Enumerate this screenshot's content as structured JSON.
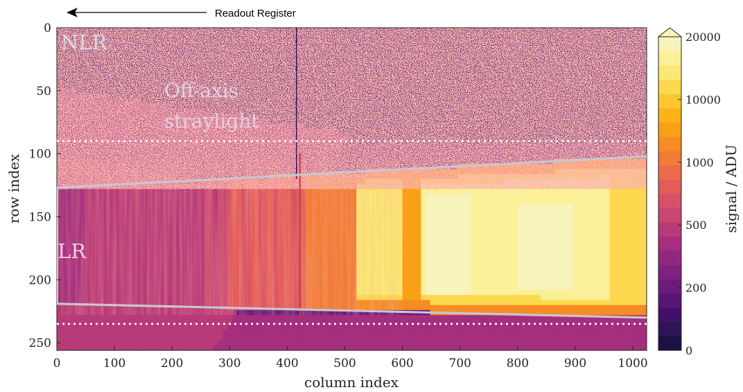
{
  "chart_data": {
    "type": "heatmap",
    "title": "",
    "xlabel": "column index",
    "ylabel": "row index",
    "xlim": [
      0,
      1024
    ],
    "ylim": [
      0,
      256
    ],
    "y_axis_inverted": true,
    "x_ticks": [
      0,
      100,
      200,
      300,
      400,
      500,
      600,
      700,
      800,
      900,
      1000
    ],
    "y_ticks": [
      0,
      50,
      100,
      150,
      200,
      250
    ],
    "colorbar": {
      "label": "signal / ADU",
      "scale": "log",
      "colormap": "plasma-like (dark purple to pale yellow), discrete levels",
      "tick_labels": [
        "0",
        "200",
        "500",
        "1000",
        "10000",
        "20000"
      ],
      "extends_above_max": true,
      "colors": [
        "#1c1046",
        "#2d1457",
        "#42106a",
        "#571677",
        "#6a1b7c",
        "#7e217f",
        "#912880",
        "#a52f7e",
        "#b83a78",
        "#c84670",
        "#d75166",
        "#e35c58",
        "#ec6a49",
        "#f27b36",
        "#f68c24",
        "#f9a016",
        "#fbb318",
        "#fcc72e",
        "#fcd94f",
        "#fbe771",
        "#faf098",
        "#f8f3bb"
      ]
    },
    "annotations": {
      "readout": "Readout Register",
      "nlr": "NLR",
      "off_axis_line1": "Off-axis",
      "off_axis_line2": "straylight",
      "lr": "LR"
    },
    "boundary_lines": [
      {
        "name": "LR upper boundary",
        "x": [
          0,
          1024
        ],
        "y": [
          127,
          102
        ]
      },
      {
        "name": "LR lower boundary",
        "x": [
          0,
          1024
        ],
        "y": [
          219,
          230
        ]
      }
    ],
    "dotted_lines_rows": [
      90,
      235
    ],
    "regions": [
      {
        "name": "NLR background",
        "rows": [
          0,
          90
        ],
        "typical_signal_ADU": 180
      },
      {
        "name": "Off-axis straylight",
        "rows": [
          45,
          125
        ],
        "columns": [
          0,
          560
        ],
        "typical_signal_ADU": 450
      },
      {
        "name": "LR left",
        "columns": [
          0,
          270
        ],
        "typical_signal_ADU": 700
      },
      {
        "name": "LR middle",
        "columns": [
          270,
          430
        ],
        "typical_signal_ADU": 1500
      },
      {
        "name": "LR right (brightest)",
        "columns": [
          520,
          960
        ],
        "typical_signal_ADU": 20000
      },
      {
        "name": "Rows below LR",
        "rows": [
          235,
          256
        ],
        "typical_signal_ADU": 600
      }
    ]
  }
}
